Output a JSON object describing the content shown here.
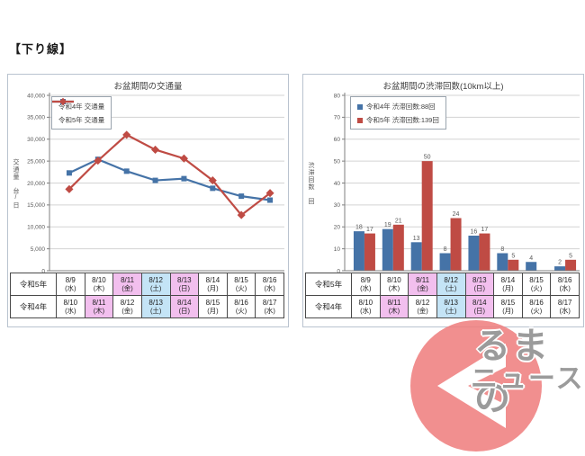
{
  "heading": "【下り線】",
  "colors": {
    "reiwa4_blue": "#4573a7",
    "reiwa5_red": "#bf4b44",
    "holiday_pink": "#f2bfee",
    "saturday_blue": "#c4e4f6",
    "gridline": "#d3d3d3",
    "axis": "#7f7f7f",
    "tick_label": "#595959"
  },
  "date_table": {
    "row_headers": [
      "令和5年",
      "令和4年"
    ],
    "rows": [
      [
        {
          "date": "8/9",
          "dow": "(水)",
          "bg": "none"
        },
        {
          "date": "8/10",
          "dow": "(木)",
          "bg": "none"
        },
        {
          "date": "8/11",
          "dow": "(金)",
          "bg": "pink"
        },
        {
          "date": "8/12",
          "dow": "(土)",
          "bg": "sat"
        },
        {
          "date": "8/13",
          "dow": "(日)",
          "bg": "pink"
        },
        {
          "date": "8/14",
          "dow": "(月)",
          "bg": "none"
        },
        {
          "date": "8/15",
          "dow": "(火)",
          "bg": "none"
        },
        {
          "date": "8/16",
          "dow": "(水)",
          "bg": "none"
        }
      ],
      [
        {
          "date": "8/10",
          "dow": "(水)",
          "bg": "none"
        },
        {
          "date": "8/11",
          "dow": "(木)",
          "bg": "pink"
        },
        {
          "date": "8/12",
          "dow": "(金)",
          "bg": "none"
        },
        {
          "date": "8/13",
          "dow": "(土)",
          "bg": "sat"
        },
        {
          "date": "8/14",
          "dow": "(日)",
          "bg": "pink"
        },
        {
          "date": "8/15",
          "dow": "(月)",
          "bg": "none"
        },
        {
          "date": "8/16",
          "dow": "(火)",
          "bg": "none"
        },
        {
          "date": "8/17",
          "dow": "(水)",
          "bg": "none"
        }
      ]
    ]
  },
  "chart_data": [
    {
      "type": "line",
      "title": "お盆期間の交通量",
      "ylabel": "交通量 台/日",
      "ylim": [
        0,
        40000
      ],
      "ytick_step": 5000,
      "ytick_labels": [
        "0",
        "5,000",
        "10,000",
        "15,000",
        "20,000",
        "25,000",
        "30,000",
        "35,000",
        "40,000"
      ],
      "grid": "horizontal",
      "legend_position": "top-left-inside",
      "series": [
        {
          "name": "令和4年 交通量",
          "color": "#4573a7",
          "marker": "square",
          "x_dates": [
            "8/10(水)",
            "8/11(木)",
            "8/12(金)",
            "8/13(土)",
            "8/14(日)",
            "8/15(月)",
            "8/16(火)",
            "8/17(水)"
          ],
          "values": [
            22300,
            25400,
            22700,
            20600,
            21000,
            18800,
            17000,
            16100
          ]
        },
        {
          "name": "令和5年 交通量",
          "color": "#bf4b44",
          "marker": "diamond",
          "x_dates": [
            "8/9(水)",
            "8/10(木)",
            "8/11(金)",
            "8/12(土)",
            "8/13(日)",
            "8/14(月)",
            "8/15(火)",
            "8/16(水)"
          ],
          "values": [
            18600,
            25100,
            31000,
            27600,
            25600,
            20600,
            12700,
            17700
          ]
        }
      ]
    },
    {
      "type": "bar",
      "title": "お盆期間の渋滞回数(10km以上)",
      "ylabel": "渋滞回数 回",
      "ylim": [
        0,
        80
      ],
      "ytick_step": 10,
      "ytick_labels": [
        "0",
        "10",
        "20",
        "30",
        "40",
        "50",
        "60",
        "70",
        "80"
      ],
      "grid": "horizontal",
      "data_labels": true,
      "legend_position": "top-inside",
      "series": [
        {
          "name": "令和4年 渋滞回数:88回",
          "color": "#4573a7",
          "total": 88,
          "x_dates": [
            "8/10(水)",
            "8/11(木)",
            "8/12(金)",
            "8/13(土)",
            "8/14(日)",
            "8/15(月)",
            "8/16(火)",
            "8/17(水)"
          ],
          "values": [
            18,
            19,
            13,
            8,
            16,
            8,
            4,
            2
          ]
        },
        {
          "name": "令和5年 渋滞回数:139回",
          "color": "#bf4b44",
          "total": 139,
          "x_dates": [
            "8/9(水)",
            "8/10(木)",
            "8/11(金)",
            "8/12(土)",
            "8/13(日)",
            "8/14(月)",
            "8/15(火)",
            "8/16(水)"
          ],
          "values": [
            17,
            21,
            50,
            24,
            17,
            5,
            0,
            5
          ]
        }
      ]
    }
  ],
  "logo": {
    "name": "くるまのニュース",
    "line1": "るまの",
    "line2": "ニュース"
  }
}
